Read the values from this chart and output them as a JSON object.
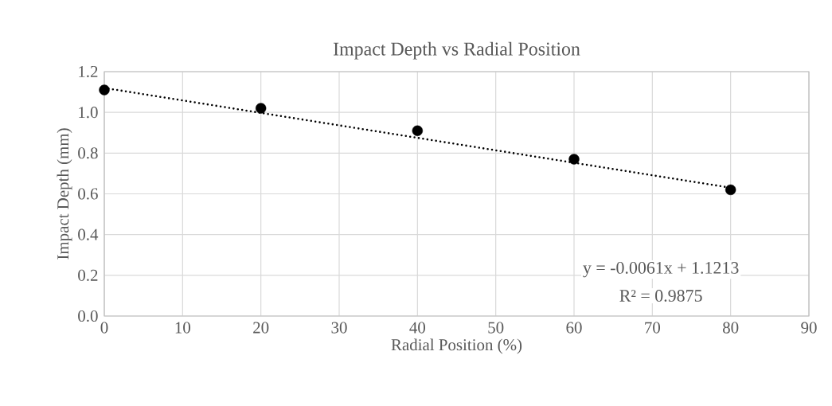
{
  "chart_data": {
    "type": "scatter",
    "title": "Impact Depth vs Radial Position",
    "xlabel": "Radial Position (%)",
    "ylabel": "Impact Depth (mm)",
    "series": [
      {
        "x": [
          0,
          20,
          40,
          60,
          80
        ],
        "values": [
          1.11,
          1.02,
          0.91,
          0.77,
          0.62
        ],
        "color": "#000000",
        "marker": "circle"
      },
      {
        "type": "line",
        "x": [
          0,
          80
        ],
        "values": [
          1.12,
          0.63
        ],
        "color": "#000000",
        "line_style": "dotted",
        "marker": "none"
      }
    ],
    "xlim": [
      0,
      90
    ],
    "xticks": [
      0,
      10,
      20,
      30,
      40,
      50,
      60,
      70,
      80,
      90
    ],
    "ylim": [
      0,
      1.2
    ],
    "yticks": [
      {
        "value": 0,
        "label": "0.0"
      },
      0.2,
      0.4,
      0.6,
      0.8,
      {
        "value": 1,
        "label": "1.0"
      },
      1.2
    ],
    "grid": true,
    "annotations": [
      "y = -0.0061x + 1.1213",
      "R² = 0.9875"
    ]
  }
}
